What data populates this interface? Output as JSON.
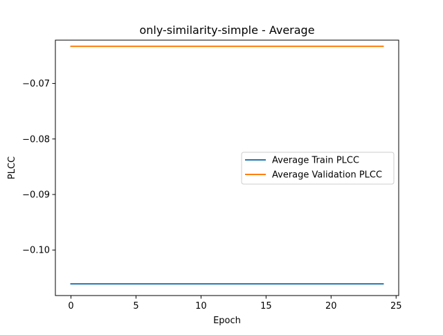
{
  "chart_data": {
    "type": "line",
    "title": "only-similarity-simple - Average",
    "xlabel": "Epoch",
    "ylabel": "PLCC",
    "xlim": [
      -1.2,
      25.2
    ],
    "ylim": [
      -0.1082,
      -0.0622
    ],
    "x_ticks": [
      0,
      5,
      10,
      15,
      20,
      25
    ],
    "x_tick_labels": [
      "0",
      "5",
      "10",
      "15",
      "20",
      "25"
    ],
    "y_ticks": [
      -0.07,
      -0.08,
      -0.09,
      -0.1
    ],
    "y_tick_labels": [
      "−0.07",
      "−0.08",
      "−0.09",
      "−0.10"
    ],
    "grid": false,
    "legend_placement": "center-right",
    "series": [
      {
        "name": "Average Train PLCC",
        "color": "#1f77b4",
        "x": [
          0,
          1,
          2,
          3,
          4,
          5,
          6,
          7,
          8,
          9,
          10,
          11,
          12,
          13,
          14,
          15,
          16,
          17,
          18,
          19,
          20,
          21,
          22,
          23,
          24
        ],
        "y": [
          -0.1061,
          -0.1061,
          -0.1061,
          -0.1061,
          -0.1061,
          -0.1061,
          -0.1061,
          -0.1061,
          -0.1061,
          -0.1061,
          -0.1061,
          -0.1061,
          -0.1061,
          -0.1061,
          -0.1061,
          -0.1061,
          -0.1061,
          -0.1061,
          -0.1061,
          -0.1061,
          -0.1061,
          -0.1061,
          -0.1061,
          -0.1061,
          -0.1061
        ]
      },
      {
        "name": "Average Validation PLCC",
        "color": "#ff7f0e",
        "x": [
          0,
          1,
          2,
          3,
          4,
          5,
          6,
          7,
          8,
          9,
          10,
          11,
          12,
          13,
          14,
          15,
          16,
          17,
          18,
          19,
          20,
          21,
          22,
          23,
          24
        ],
        "y": [
          -0.0633,
          -0.0633,
          -0.0633,
          -0.0633,
          -0.0633,
          -0.0633,
          -0.0633,
          -0.0633,
          -0.0633,
          -0.0633,
          -0.0633,
          -0.0633,
          -0.0633,
          -0.0633,
          -0.0633,
          -0.0633,
          -0.0633,
          -0.0633,
          -0.0633,
          -0.0633,
          -0.0633,
          -0.0633,
          -0.0633,
          -0.0633,
          -0.0633
        ]
      }
    ]
  }
}
